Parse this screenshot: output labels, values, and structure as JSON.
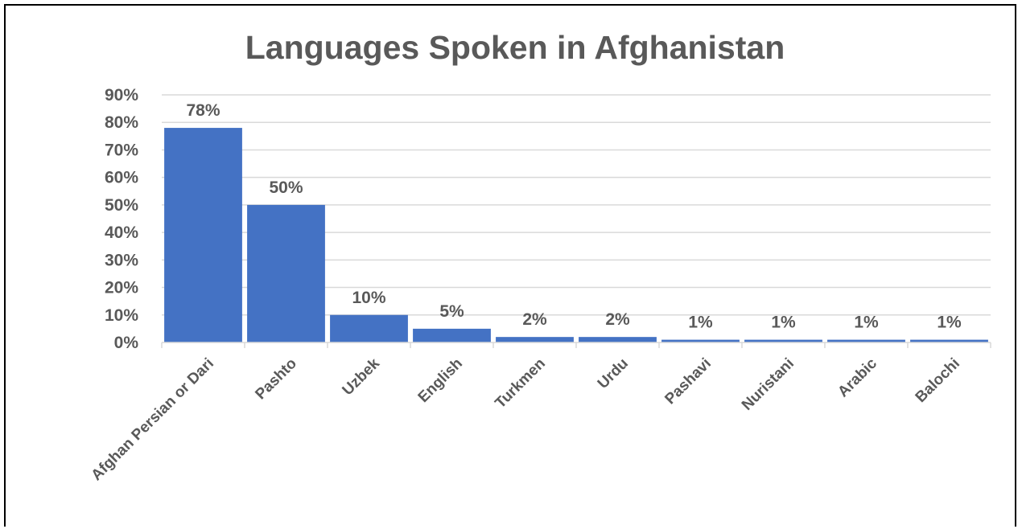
{
  "chart_data": {
    "type": "bar",
    "title": "Languages Spoken in Afghanistan",
    "categories": [
      "Afghan Persian or Dari",
      "Pashto",
      "Uzbek",
      "English",
      "Turkmen",
      "Urdu",
      "Pashavi",
      "Nuristani",
      "Arabic",
      "Balochi"
    ],
    "values": [
      78,
      50,
      10,
      5,
      2,
      2,
      1,
      1,
      1,
      1
    ],
    "data_labels": [
      "78%",
      "50%",
      "10%",
      "5%",
      "2%",
      "2%",
      "1%",
      "1%",
      "1%",
      "1%"
    ],
    "ylim": [
      0,
      90
    ],
    "yticks": [
      "0%",
      "10%",
      "20%",
      "30%",
      "40%",
      "50%",
      "60%",
      "70%",
      "80%",
      "90%"
    ],
    "xlabel": "",
    "ylabel": "",
    "grid": true,
    "legend": "none",
    "bar_color": "#4472C4",
    "grid_color": "#D9D9D9"
  }
}
